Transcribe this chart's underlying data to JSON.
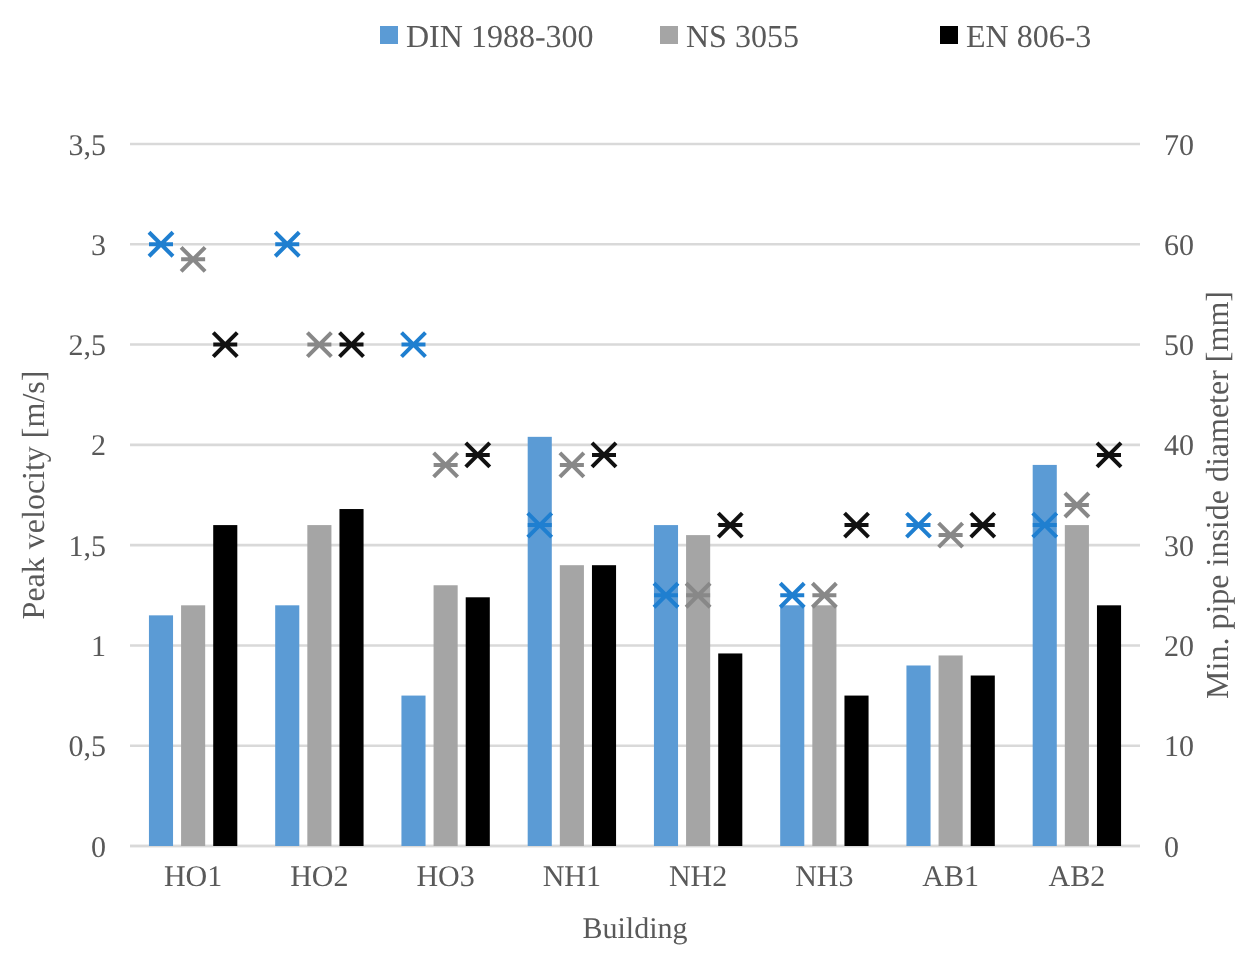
{
  "chart_data": {
    "type": "bar",
    "xlabel": "Building",
    "ylabel": "Peak velocity [m/s]",
    "y2label": "Min. pipe inside diameter [mm]",
    "categories": [
      "HO1",
      "HO2",
      "HO3",
      "NH1",
      "NH2",
      "NH3",
      "AB1",
      "AB2"
    ],
    "series": [
      {
        "name": "DIN 1988-300",
        "color": "#5b9bd5",
        "values": [
          1.15,
          1.2,
          0.75,
          2.04,
          1.6,
          1.2,
          0.9,
          1.9
        ]
      },
      {
        "name": "NS 3055",
        "color": "#a5a5a5",
        "values": [
          1.2,
          1.6,
          1.3,
          1.4,
          1.55,
          1.2,
          0.95,
          1.6
        ]
      },
      {
        "name": "EN 806-3",
        "color": "#000000",
        "values": [
          1.6,
          1.68,
          1.24,
          1.4,
          0.96,
          0.75,
          0.85,
          1.2
        ]
      },
      {
        "type": "scatter",
        "axis": "y2",
        "color": "#1f7fd0",
        "x": [
          "HO1",
          "HO2",
          "HO3",
          "NH1",
          "NH2",
          "NH3",
          "AB1",
          "AB2"
        ],
        "values": [
          60,
          60,
          50,
          32,
          25,
          25,
          32,
          32
        ]
      },
      {
        "type": "scatter",
        "axis": "y2",
        "color": "#888888",
        "x": [
          "HO1",
          "HO2",
          "HO3",
          "NH1",
          "NH2",
          "NH3",
          "AB1",
          "AB2"
        ],
        "values": [
          58.5,
          50,
          38,
          38,
          25,
          25,
          31,
          34
        ]
      },
      {
        "type": "scatter",
        "axis": "y2",
        "color": "#111111",
        "x": [
          "HO1",
          "HO2",
          "HO3",
          "NH1",
          "NH2",
          "NH3",
          "AB1",
          "AB2"
        ],
        "values": [
          50,
          50,
          39,
          39,
          32,
          32,
          32,
          39
        ]
      }
    ],
    "ylim": [
      0,
      3.5
    ],
    "yticks": [
      0,
      {
        "value": 0.5,
        "label": "0,5"
      },
      1,
      {
        "value": 1.5,
        "label": "1,5"
      },
      2,
      {
        "value": 2.5,
        "label": "2,5"
      },
      3,
      {
        "value": 3.5,
        "label": "3,5"
      }
    ],
    "y2lim": [
      0,
      70
    ],
    "y2ticks": [
      0,
      10,
      20,
      30,
      40,
      50,
      60,
      70
    ],
    "grid": "y",
    "legend": "top",
    "marker": "cross"
  }
}
